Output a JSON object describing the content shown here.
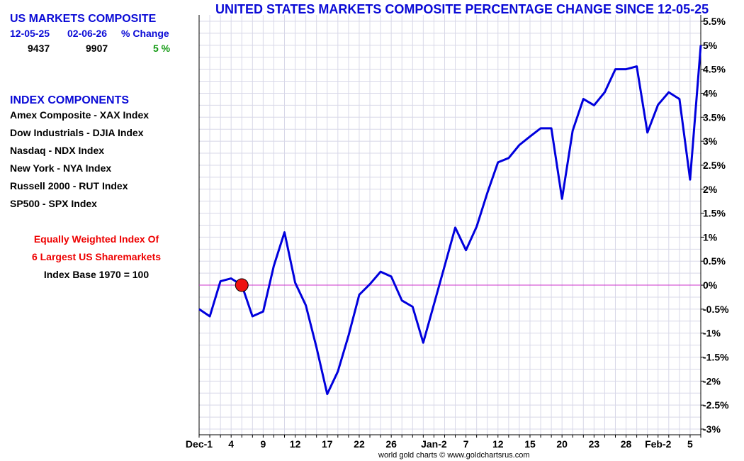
{
  "summary": {
    "title": "US MARKETS COMPOSITE",
    "col_start_label": "12-05-25",
    "col_end_label": "02-06-26",
    "col_change_label": "% Change",
    "start_value": "9437",
    "end_value": "9907",
    "change_value": "5 %"
  },
  "components": {
    "title": "INDEX COMPONENTS",
    "items": [
      "Amex Composite - XAX Index",
      "Dow Industrials - DJIA Index",
      "Nasdaq - NDX Index",
      "New York - NYA Index",
      "Russell 2000 - RUT Index",
      "SP500 - SPX Index"
    ]
  },
  "notes": {
    "line1": "Equally Weighted Index Of",
    "line2": "6 Largest US Sharemarkets",
    "line3": "Index Base 1970 = 100"
  },
  "credit": "world gold charts © www.goldchartsrus.com",
  "colors": {
    "line": "#0000dd",
    "zero_line": "#cc33cc",
    "grid": "#d8d8e8",
    "marker": "#ee1111"
  },
  "chart_data": {
    "type": "line",
    "title": "UNITED STATES MARKETS COMPOSITE PERCENTAGE CHANGE SINCE 12-05-25",
    "xlabel": "",
    "ylabel": "",
    "ylim": [
      -3,
      5.5
    ],
    "yticks": [
      5.5,
      5,
      4.5,
      4,
      3.5,
      3,
      2.5,
      2,
      1.5,
      1,
      0.5,
      0,
      -0.5,
      -1,
      -1.5,
      -2,
      -2.5,
      -3
    ],
    "ytick_labels": [
      "5.5%",
      "5%",
      "4.5%",
      "4%",
      "3.5%",
      "3%",
      "2.5%",
      "2%",
      "1.5%",
      "1%",
      "0.5%",
      "0%",
      "-0.5%",
      "-1%",
      "-1.5%",
      "-2%",
      "-2.5%",
      "-3%"
    ],
    "x_count": 48,
    "xticks": [
      {
        "index": 0,
        "label": "Dec-1"
      },
      {
        "index": 3,
        "label": "4"
      },
      {
        "index": 6,
        "label": "9"
      },
      {
        "index": 9,
        "label": "12"
      },
      {
        "index": 12,
        "label": "17"
      },
      {
        "index": 15,
        "label": "22"
      },
      {
        "index": 18,
        "label": "26"
      },
      {
        "index": 22,
        "label": "Jan-2"
      },
      {
        "index": 25,
        "label": "7"
      },
      {
        "index": 28,
        "label": "12"
      },
      {
        "index": 31,
        "label": "15"
      },
      {
        "index": 34,
        "label": "20"
      },
      {
        "index": 37,
        "label": "23"
      },
      {
        "index": 40,
        "label": "28"
      },
      {
        "index": 43,
        "label": "Feb-2"
      },
      {
        "index": 46,
        "label": "5"
      }
    ],
    "grid": true,
    "reference_line": 0,
    "marker": {
      "index": 4,
      "value": 0
    },
    "series": [
      {
        "name": "US Markets Composite % Change",
        "values": [
          -0.5,
          -0.65,
          0.08,
          0.14,
          0.0,
          -0.65,
          -0.55,
          0.4,
          1.1,
          0.05,
          -0.42,
          -1.3,
          -2.27,
          -1.8,
          -1.05,
          -0.2,
          0.02,
          0.28,
          0.18,
          -0.32,
          -0.45,
          -1.2,
          -0.4,
          0.4,
          1.2,
          0.73,
          1.22,
          1.92,
          2.56,
          2.65,
          2.92,
          3.1,
          3.27,
          3.27,
          1.8,
          3.22,
          3.88,
          3.75,
          4.02,
          4.5,
          4.5,
          4.56,
          3.18,
          3.76,
          4.02,
          3.88,
          2.2,
          5.0
        ]
      }
    ]
  }
}
